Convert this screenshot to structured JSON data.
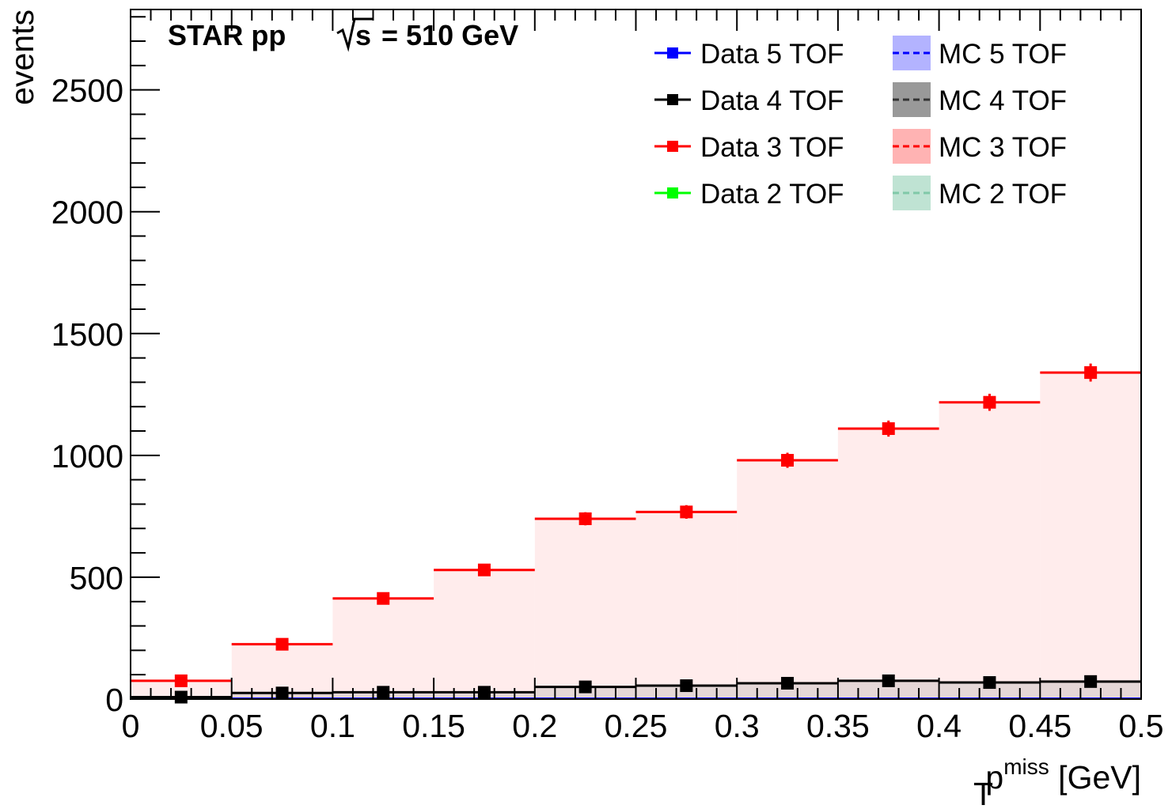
{
  "header": {
    "experiment": "STAR pp",
    "energy": "= 510 GeV",
    "sqrt_symbol": "√s"
  },
  "colors": {
    "data5": "#0000ff",
    "data4": "#000000",
    "data3": "#ff0000",
    "data2": "#00ff00",
    "mc5_fill": "#b3b3ff",
    "mc4_fill": "#999999",
    "mc3_fill": "#ffb3b3",
    "mc2_fill": "#bfe3d3",
    "mc5_line": "#0000ff",
    "mc4_line": "#333333",
    "mc3_line": "#ff0000",
    "mc2_line": "#80c8a8"
  },
  "chart_data": {
    "type": "scatter",
    "title": "",
    "ylabel": "events",
    "xlabel_main": "p",
    "xlabel_sup": "miss",
    "xlabel_sub": "T",
    "xlabel_unit": "[GeV]",
    "xlim": [
      0,
      0.5
    ],
    "ylim": [
      0,
      2830
    ],
    "x_ticks": [
      "0",
      "0.05",
      "0.1",
      "0.15",
      "0.2",
      "0.25",
      "0.3",
      "0.35",
      "0.4",
      "0.45",
      "0.5"
    ],
    "y_ticks": [
      "0",
      "500",
      "1000",
      "1500",
      "2000",
      "2500"
    ],
    "bin_edges": [
      0,
      0.05,
      0.1,
      0.15,
      0.2,
      0.25,
      0.3,
      0.35,
      0.4,
      0.45,
      0.5
    ],
    "bin_centers": [
      0.025,
      0.075,
      0.125,
      0.175,
      0.225,
      0.275,
      0.325,
      0.375,
      0.425,
      0.475
    ],
    "legend_position": "top-right",
    "series": [
      {
        "name": "Data 3 TOF",
        "kind": "data",
        "color_key": "data3",
        "values": [
          75,
          225,
          413,
          530,
          740,
          768,
          980,
          1110,
          1218,
          1340
        ],
        "errors": [
          9,
          15,
          20,
          23,
          27,
          28,
          31,
          33,
          35,
          37
        ]
      },
      {
        "name": "Data 4 TOF",
        "kind": "data",
        "color_key": "data4",
        "values": [
          8,
          25,
          28,
          28,
          50,
          55,
          65,
          75,
          68,
          72
        ],
        "errors": [
          3,
          5,
          5,
          5,
          7,
          7,
          8,
          9,
          8,
          8
        ]
      },
      {
        "name": "Data 5 TOF",
        "kind": "data",
        "color_key": "data5",
        "values": [
          0,
          0,
          0,
          0,
          0,
          0,
          0,
          0,
          0,
          0
        ],
        "errors": [
          0,
          0,
          0,
          0,
          0,
          0,
          0,
          0,
          0,
          0
        ]
      },
      {
        "name": "Data 2 TOF",
        "kind": "data",
        "color_key": "data2",
        "values": [
          0,
          0,
          0,
          0,
          0,
          0,
          0,
          0,
          0,
          0
        ],
        "errors": [
          0,
          0,
          0,
          0,
          0,
          0,
          0,
          0,
          0,
          0
        ]
      },
      {
        "name": "MC 3 TOF",
        "kind": "mc",
        "fill_key": "mc3_fill",
        "line_key": "mc3_line",
        "values": [
          75,
          225,
          413,
          530,
          740,
          768,
          980,
          1110,
          1218,
          1340
        ]
      },
      {
        "name": "MC 4 TOF",
        "kind": "mc",
        "fill_key": "mc4_fill",
        "line_key": "mc4_line",
        "values": [
          8,
          25,
          25,
          25,
          50,
          50,
          62,
          75,
          70,
          72
        ]
      }
    ],
    "legend": [
      {
        "label": "Data 5 TOF",
        "kind": "data",
        "color_key": "data5"
      },
      {
        "label": "MC 5 TOF",
        "kind": "mc",
        "fill_key": "mc5_fill",
        "line_key": "mc5_line"
      },
      {
        "label": "Data 4 TOF",
        "kind": "data",
        "color_key": "data4"
      },
      {
        "label": "MC 4 TOF",
        "kind": "mc",
        "fill_key": "mc4_fill",
        "line_key": "mc4_line"
      },
      {
        "label": "Data 3 TOF",
        "kind": "data",
        "color_key": "data3"
      },
      {
        "label": "MC 3 TOF",
        "kind": "mc",
        "fill_key": "mc3_fill",
        "line_key": "mc3_line"
      },
      {
        "label": "Data 2 TOF",
        "kind": "data",
        "color_key": "data2"
      },
      {
        "label": "MC 2 TOF",
        "kind": "mc",
        "fill_key": "mc2_fill",
        "line_key": "mc2_line"
      }
    ]
  }
}
